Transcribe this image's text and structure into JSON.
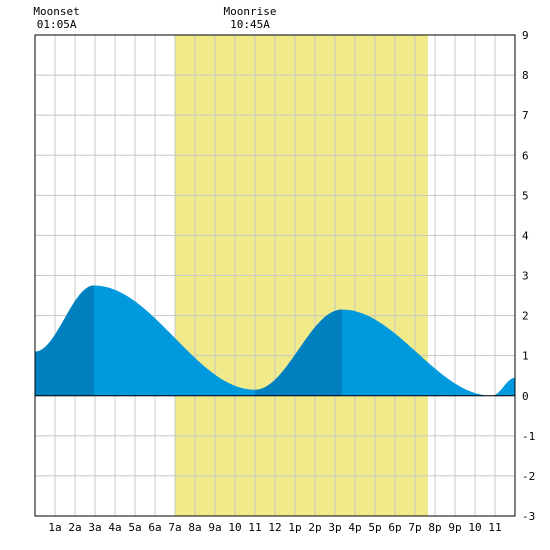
{
  "chart_data": {
    "type": "area",
    "title": "",
    "xlabel": "",
    "ylabel": "",
    "xlim": [
      0,
      24
    ],
    "ylim": [
      -3,
      9
    ],
    "y_ticks": [
      9,
      8,
      7,
      6,
      5,
      4,
      3,
      2,
      1,
      0,
      -1,
      -2,
      -3
    ],
    "x_tick_labels": [
      "1a",
      "2a",
      "3a",
      "4a",
      "5a",
      "6a",
      "7a",
      "8a",
      "9a",
      "10",
      "11",
      "12",
      "1p",
      "2p",
      "3p",
      "4p",
      "5p",
      "6p",
      "7p",
      "8p",
      "9p",
      "10",
      "11"
    ],
    "grid": true,
    "daylight": {
      "start_hour": 7.0,
      "end_hour": 19.65
    },
    "annotations": [
      {
        "name": "moonset",
        "label": "Moonset",
        "time": "01:05A",
        "hour": 1.08
      },
      {
        "name": "moonrise",
        "label": "Moonrise",
        "time": "10:45A",
        "hour": 10.75
      }
    ],
    "tide_extrema": [
      {
        "hour": 0.0,
        "value": 1.1,
        "kind": "start"
      },
      {
        "hour": 2.95,
        "value": 2.75,
        "kind": "high"
      },
      {
        "hour": 11.0,
        "value": 0.15,
        "kind": "low"
      },
      {
        "hour": 15.35,
        "value": 2.15,
        "kind": "high"
      },
      {
        "hour": 22.85,
        "value": 0.0,
        "kind": "low"
      },
      {
        "hour": 24.0,
        "value": 0.45,
        "kind": "end"
      }
    ],
    "rising_bands": [
      [
        0.0,
        2.95
      ],
      [
        11.0,
        15.35
      ]
    ],
    "colors": {
      "daylight": "#f0ea8a",
      "tide": "#0099dd",
      "tide_rising": "#0080bf",
      "grid": "#c8c8c8",
      "frame": "#000000"
    }
  }
}
